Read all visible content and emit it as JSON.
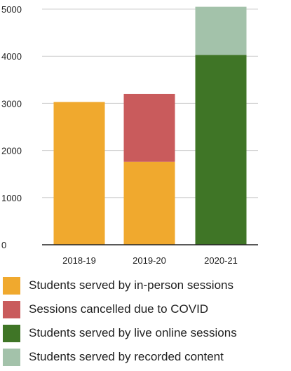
{
  "chart_data": {
    "type": "bar",
    "stacked": true,
    "categories": [
      "2018-19",
      "2019-20",
      "2020-21"
    ],
    "series": [
      {
        "name": "Students served by in-person sessions",
        "color": "#F0A92E",
        "values": [
          3030,
          1760,
          0
        ]
      },
      {
        "name": "Sessions cancelled due to COVID",
        "color": "#C95B5C",
        "values": [
          0,
          1440,
          0
        ]
      },
      {
        "name": "Students served by live online sessions",
        "color": "#3F7526",
        "values": [
          0,
          0,
          4030
        ]
      },
      {
        "name": "Students served by recorded content",
        "color": "#A3C2AA",
        "values": [
          0,
          0,
          1020
        ]
      }
    ],
    "yticks": [
      "0",
      "1000",
      "2000",
      "3000",
      "4000",
      "5000"
    ],
    "ylim": [
      0,
      5000
    ],
    "grid": true,
    "legend_position": "bottom",
    "title": "",
    "xlabel": "",
    "ylabel": ""
  }
}
